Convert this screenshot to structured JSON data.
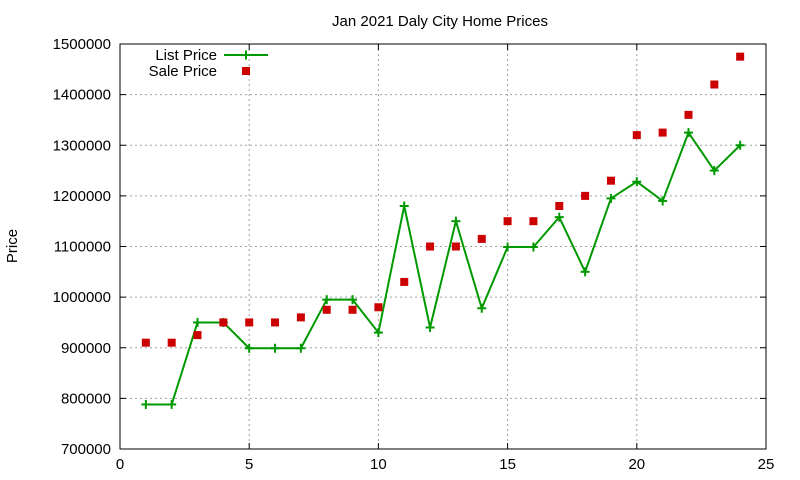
{
  "chart_data": {
    "type": "line",
    "title": "Jan 2021 Daly City Home Prices",
    "xlabel": "",
    "ylabel": "Price",
    "xlim": [
      0,
      25
    ],
    "ylim": [
      700000,
      1500000
    ],
    "xticks": [
      "0",
      "5",
      "10",
      "15",
      "20",
      "25"
    ],
    "yticks": [
      "700000",
      "800000",
      "900000",
      "1000000",
      "1100000",
      "1200000",
      "1300000",
      "1400000",
      "1500000"
    ],
    "grid": true,
    "legend_position": "top-left",
    "x": [
      1,
      2,
      3,
      4,
      5,
      6,
      7,
      8,
      9,
      10,
      11,
      12,
      13,
      14,
      15,
      16,
      17,
      18,
      19,
      20,
      21,
      22,
      23,
      24
    ],
    "series": [
      {
        "name": "List Price",
        "style": "line-plus",
        "color": "#009900",
        "values": [
          788000,
          788000,
          950000,
          950000,
          899000,
          899000,
          899000,
          995000,
          995000,
          930000,
          1180000,
          940000,
          1150000,
          978000,
          1099000,
          1099000,
          1158000,
          1050000,
          1195000,
          1228000,
          1190000,
          1325000,
          1250000,
          1300000
        ]
      },
      {
        "name": "Sale Price",
        "style": "square-marker",
        "color": "#cc0000",
        "values": [
          910000,
          910000,
          925000,
          950000,
          950000,
          950000,
          960000,
          975000,
          975000,
          980000,
          1030000,
          1100000,
          1100000,
          1115000,
          1150000,
          1150000,
          1180000,
          1200000,
          1230000,
          1320000,
          1325000,
          1360000,
          1420000,
          1475000
        ]
      }
    ]
  }
}
